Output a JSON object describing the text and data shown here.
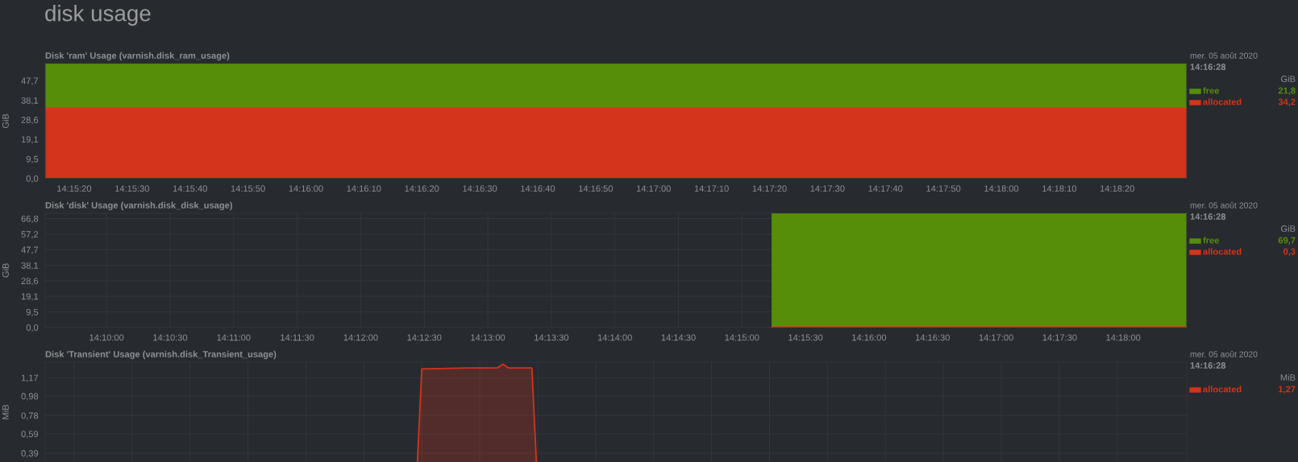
{
  "chart_data": [
    {
      "type": "area",
      "title": "disk usage",
      "subtitle": "Disk 'ram' Usage (varnish.disk_ram_usage)",
      "ylabel": "GiB",
      "stacked": true,
      "grid": true,
      "legend": "right",
      "annotations": [
        "mer. 05 août 2020",
        "14:16:28",
        "GiB",
        "21,8",
        "34,2"
      ],
      "x": [
        14.254167,
        14.274444,
        14.308889
      ],
      "series": [
        {
          "name": "allocated",
          "color": "#d4341b",
          "values": [
            34.2,
            34.2,
            34.2
          ]
        },
        {
          "name": "free",
          "color": "#568e0a",
          "values": [
            21.8,
            21.8,
            21.8
          ]
        }
      ],
      "xlim": [
        14.254167,
        14.308889
      ],
      "xticks": [
        {
          "value": 14.255556,
          "label": "14:15:20"
        },
        {
          "value": 14.258333,
          "label": "14:15:30"
        },
        {
          "value": 14.261111,
          "label": "14:15:40"
        },
        {
          "value": 14.263889,
          "label": "14:15:50"
        },
        {
          "value": 14.266667,
          "label": "14:16:00"
        },
        {
          "value": 14.269444,
          "label": "14:16:10"
        },
        {
          "value": 14.272222,
          "label": "14:16:20"
        },
        {
          "value": 14.275,
          "label": "14:16:30"
        },
        {
          "value": 14.277778,
          "label": "14:16:40"
        },
        {
          "value": 14.280556,
          "label": "14:16:50"
        },
        {
          "value": 14.283333,
          "label": "14:17:00"
        },
        {
          "value": 14.286111,
          "label": "14:17:10"
        },
        {
          "value": 14.288889,
          "label": "14:17:20"
        },
        {
          "value": 14.291667,
          "label": "14:17:30"
        },
        {
          "value": 14.294444,
          "label": "14:17:40"
        },
        {
          "value": 14.297222,
          "label": "14:17:50"
        },
        {
          "value": 14.3,
          "label": "14:18:00"
        },
        {
          "value": 14.302778,
          "label": "14:18:10"
        },
        {
          "value": 14.305556,
          "label": "14:18:20"
        }
      ],
      "ylim": [
        0,
        56
      ],
      "yticks": [
        {
          "value": 0,
          "label": "0,0"
        },
        {
          "value": 9.5,
          "label": "9,5"
        },
        {
          "value": 19.1,
          "label": "19,1"
        },
        {
          "value": 28.6,
          "label": "28,6"
        },
        {
          "value": 38.1,
          "label": "38,1"
        },
        {
          "value": 47.7,
          "label": "47,7"
        }
      ]
    },
    {
      "type": "area",
      "subtitle": "Disk 'disk' Usage (varnish.disk_disk_usage)",
      "ylabel": "GiB",
      "stacked": true,
      "grid": true,
      "legend": "right",
      "annotations": [
        "mer. 05 août 2020",
        "14:16:28",
        "GiB",
        "69,7",
        "0,3"
      ],
      "x": [
        14.253889,
        14.274444,
        14.308333
      ],
      "series": [
        {
          "name": "allocated",
          "color": "#d4341b",
          "values": [
            0.3,
            0.3,
            0.3
          ]
        },
        {
          "name": "free",
          "color": "#568e0a",
          "values": [
            69.7,
            69.7,
            69.7
          ]
        }
      ],
      "xlim": [
        14.158611,
        14.308333
      ],
      "xticks": [
        {
          "value": 14.166667,
          "label": "14:10:00"
        },
        {
          "value": 14.175,
          "label": "14:10:30"
        },
        {
          "value": 14.183333,
          "label": "14:11:00"
        },
        {
          "value": 14.191667,
          "label": "14:11:30"
        },
        {
          "value": 14.2,
          "label": "14:12:00"
        },
        {
          "value": 14.208333,
          "label": "14:12:30"
        },
        {
          "value": 14.216667,
          "label": "14:13:00"
        },
        {
          "value": 14.225,
          "label": "14:13:30"
        },
        {
          "value": 14.233333,
          "label": "14:14:00"
        },
        {
          "value": 14.241667,
          "label": "14:14:30"
        },
        {
          "value": 14.25,
          "label": "14:15:00"
        },
        {
          "value": 14.258333,
          "label": "14:15:30"
        },
        {
          "value": 14.266667,
          "label": "14:16:00"
        },
        {
          "value": 14.275,
          "label": "14:16:30"
        },
        {
          "value": 14.283333,
          "label": "14:17:00"
        },
        {
          "value": 14.291667,
          "label": "14:17:30"
        },
        {
          "value": 14.3,
          "label": "14:18:00"
        }
      ],
      "ylim": [
        0,
        70
      ],
      "yticks": [
        {
          "value": 0,
          "label": "0,0"
        },
        {
          "value": 9.5,
          "label": "9,5"
        },
        {
          "value": 19.1,
          "label": "19,1"
        },
        {
          "value": 28.6,
          "label": "28,6"
        },
        {
          "value": 38.1,
          "label": "38,1"
        },
        {
          "value": 47.7,
          "label": "47,7"
        },
        {
          "value": 57.2,
          "label": "57,2"
        },
        {
          "value": 66.8,
          "label": "66,8"
        }
      ]
    },
    {
      "type": "area",
      "subtitle": "Disk 'Transient' Usage (varnish.disk_Transient_usage)",
      "ylabel": "MiB",
      "grid": true,
      "legend": "right",
      "tick_labels": "y",
      "annotations": [
        "mer. 05 août 2020",
        "14:16:28",
        "MiB",
        "1,27"
      ],
      "x": [
        14.254167,
        14.271944,
        14.272222,
        14.274444,
        14.275833,
        14.276111,
        14.276389,
        14.2775,
        14.277778,
        14.308889
      ],
      "series": [
        {
          "name": "allocated",
          "color": "#d4341b",
          "values": [
            0,
            0,
            1.26,
            1.27,
            1.27,
            1.31,
            1.27,
            1.27,
            0,
            0
          ]
        }
      ],
      "xlim": [
        14.254167,
        14.308889
      ],
      "xticks": [
        14.255556,
        14.258333,
        14.261111,
        14.263889,
        14.266667,
        14.269444,
        14.272222,
        14.275,
        14.277778,
        14.280556,
        14.283333,
        14.286111,
        14.288889,
        14.291667,
        14.294444,
        14.297222,
        14.3,
        14.302778,
        14.305556
      ],
      "ylim": [
        0,
        1.33
      ],
      "yticks": [
        {
          "value": 0.39,
          "label": "0,39"
        },
        {
          "value": 0.59,
          "label": "0,59"
        },
        {
          "value": 0.78,
          "label": "0,78"
        },
        {
          "value": 0.98,
          "label": "0,98"
        },
        {
          "value": 1.17,
          "label": "1,17"
        }
      ]
    }
  ]
}
